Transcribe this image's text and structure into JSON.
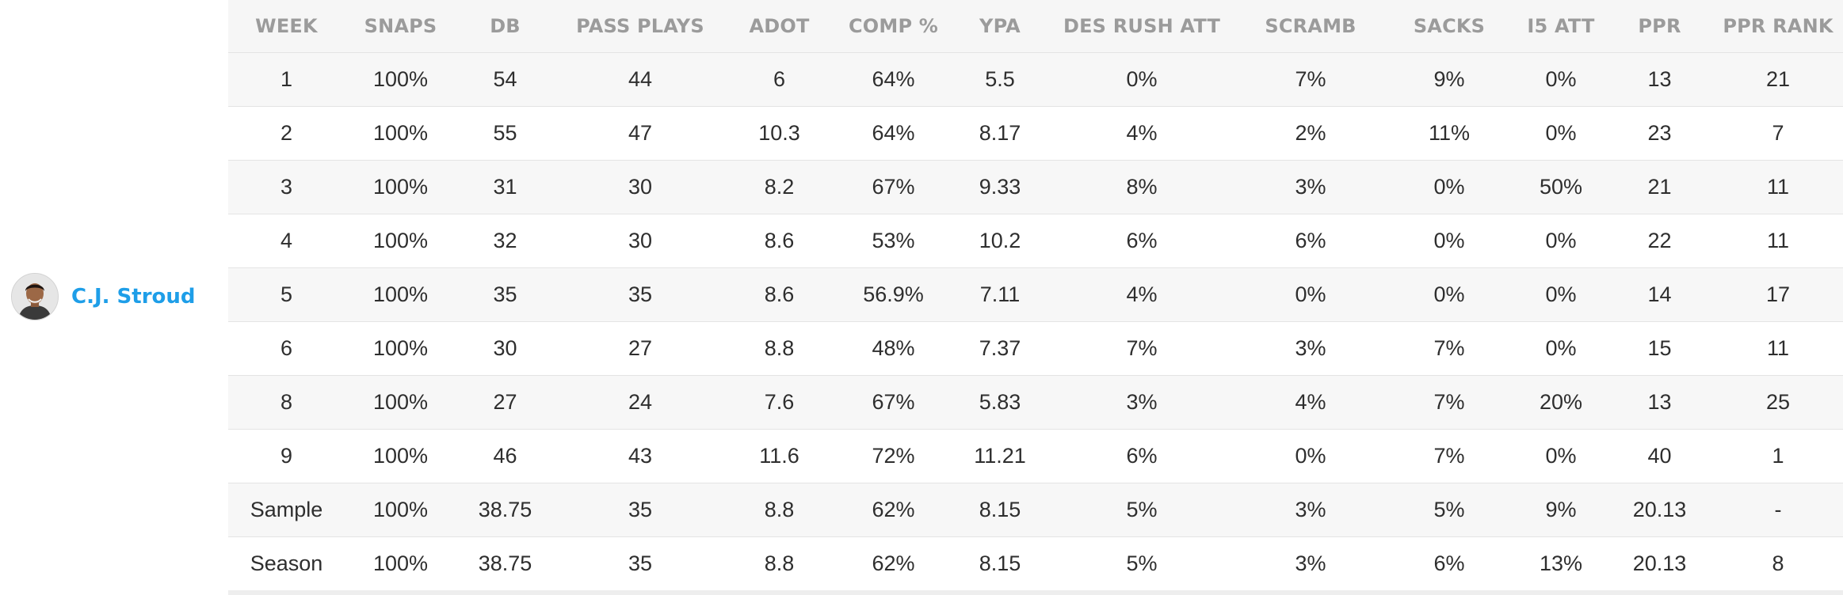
{
  "player": {
    "name": "C.J. Stroud",
    "avatar_icon": "player-headshot-icon"
  },
  "table": {
    "columns": [
      "WEEK",
      "SNAPS",
      "DB",
      "PASS PLAYS",
      "ADOT",
      "COMP %",
      "YPA",
      "DES RUSH ATT",
      "SCRAMB",
      "SACKS",
      "I5 ATT",
      "PPR",
      "PPR RANK"
    ],
    "rows": [
      [
        "1",
        "100%",
        "54",
        "44",
        "6",
        "64%",
        "5.5",
        "0%",
        "7%",
        "9%",
        "0%",
        "13",
        "21"
      ],
      [
        "2",
        "100%",
        "55",
        "47",
        "10.3",
        "64%",
        "8.17",
        "4%",
        "2%",
        "11%",
        "0%",
        "23",
        "7"
      ],
      [
        "3",
        "100%",
        "31",
        "30",
        "8.2",
        "67%",
        "9.33",
        "8%",
        "3%",
        "0%",
        "50%",
        "21",
        "11"
      ],
      [
        "4",
        "100%",
        "32",
        "30",
        "8.6",
        "53%",
        "10.2",
        "6%",
        "6%",
        "0%",
        "0%",
        "22",
        "11"
      ],
      [
        "5",
        "100%",
        "35",
        "35",
        "8.6",
        "56.9%",
        "7.11",
        "4%",
        "0%",
        "0%",
        "0%",
        "14",
        "17"
      ],
      [
        "6",
        "100%",
        "30",
        "27",
        "8.8",
        "48%",
        "7.37",
        "7%",
        "3%",
        "7%",
        "0%",
        "15",
        "11"
      ],
      [
        "8",
        "100%",
        "27",
        "24",
        "7.6",
        "67%",
        "5.83",
        "3%",
        "4%",
        "7%",
        "20%",
        "13",
        "25"
      ],
      [
        "9",
        "100%",
        "46",
        "43",
        "11.6",
        "72%",
        "11.21",
        "6%",
        "0%",
        "7%",
        "0%",
        "40",
        "1"
      ],
      [
        "Sample",
        "100%",
        "38.75",
        "35",
        "8.8",
        "62%",
        "8.15",
        "5%",
        "3%",
        "5%",
        "9%",
        "20.13",
        "-"
      ],
      [
        "Season",
        "100%",
        "38.75",
        "35",
        "8.8",
        "62%",
        "8.15",
        "5%",
        "3%",
        "6%",
        "13%",
        "20.13",
        "8"
      ]
    ]
  },
  "colors": {
    "link": "#1e9ee8",
    "header_text": "#9b9b9b",
    "row_stripe": "#f7f7f7",
    "border": "#e4e4e4"
  }
}
